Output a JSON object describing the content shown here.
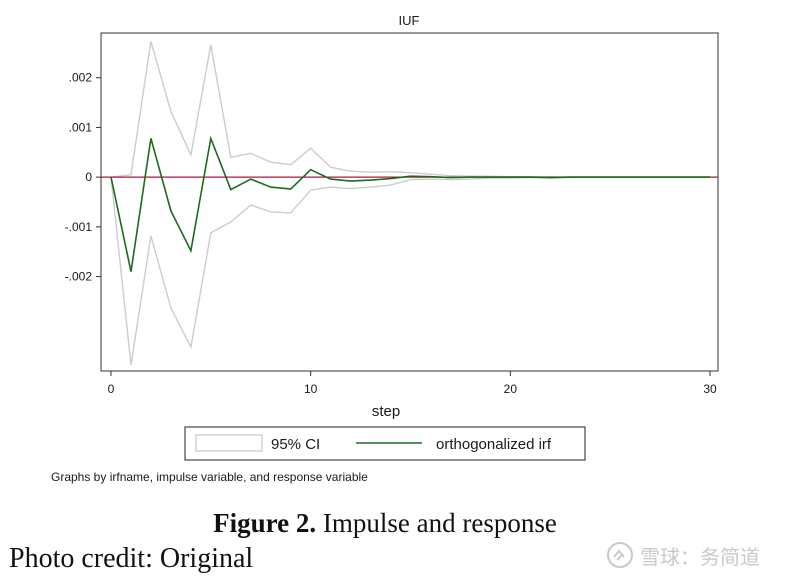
{
  "chart_data": {
    "type": "line",
    "title": "IUF",
    "xlabel": "step",
    "ylabel": "",
    "xlim": [
      -0.5,
      30.4
    ],
    "ylim": [
      -0.0039,
      0.0029
    ],
    "xticks": [
      0,
      10,
      20,
      30
    ],
    "xtick_labels": [
      "0",
      "10",
      "20",
      "30"
    ],
    "yticks": [
      0.002,
      0.001,
      0,
      -0.001,
      -0.002
    ],
    "ytick_labels": [
      ".002",
      ".001",
      "0",
      "-.001",
      "-.002"
    ],
    "zero_line_color": "#b0153c",
    "x": [
      0,
      1,
      2,
      3,
      4,
      5,
      6,
      7,
      8,
      9,
      10,
      11,
      12,
      13,
      14,
      15,
      16,
      17,
      18,
      19,
      20,
      21,
      22,
      23,
      24,
      25,
      26,
      27,
      28,
      29,
      30
    ],
    "series": [
      {
        "name": "orthogonalized irf",
        "color": "#1e6b1e",
        "values": [
          0.0,
          -0.0019,
          0.00078,
          -0.00068,
          -0.00148,
          0.00078,
          -0.00025,
          -4e-05,
          -0.0002,
          -0.00024,
          0.00015,
          -4e-05,
          -8e-05,
          -6e-05,
          -3e-05,
          2e-05,
          1e-05,
          -1e-05,
          0.0,
          0.0,
          0.0,
          0.0,
          -1e-05,
          0.0,
          0.0,
          0.0,
          0.0,
          0.0,
          0.0,
          0.0,
          0.0
        ]
      }
    ],
    "ci": {
      "name": "95% CI",
      "color": "#cccccc",
      "upper": [
        0.0,
        5e-05,
        0.00273,
        0.00132,
        0.00045,
        0.00266,
        0.0004,
        0.00048,
        0.0003,
        0.00025,
        0.00058,
        0.0002,
        0.00012,
        0.0001,
        0.00011,
        9e-05,
        6e-05,
        3e-05,
        2e-05,
        2e-05,
        1e-05,
        1e-05,
        1e-05,
        0.0,
        0.0,
        0.0,
        0.0,
        0.0,
        0.0,
        0.0,
        0.0
      ],
      "lower": [
        0.0,
        -0.00378,
        -0.00118,
        -0.00263,
        -0.00342,
        -0.00112,
        -0.0009,
        -0.00056,
        -0.0007,
        -0.00072,
        -0.00026,
        -0.0002,
        -0.00023,
        -0.0002,
        -0.00016,
        -5e-05,
        -4e-05,
        -5e-05,
        -4e-05,
        -2e-05,
        -2e-05,
        -1e-05,
        -2e-05,
        -1e-05,
        0.0,
        0.0,
        0.0,
        0.0,
        0.0,
        0.0,
        0.0
      ]
    },
    "legend": {
      "placement": "bottom",
      "entries": [
        "95% CI",
        "orthogonalized irf"
      ]
    },
    "note": "Graphs by irfname, impulse variable, and response variable",
    "grid": false
  },
  "caption": {
    "label": "Figure 2.",
    "text": " Impulse and response"
  },
  "credit": "Photo credit: Original",
  "watermark": {
    "text": "雪球：务简道"
  }
}
